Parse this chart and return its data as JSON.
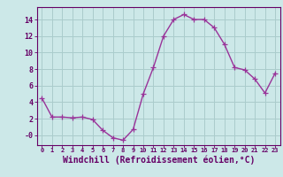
{
  "x": [
    0,
    1,
    2,
    3,
    4,
    5,
    6,
    7,
    8,
    9,
    10,
    11,
    12,
    13,
    14,
    15,
    16,
    17,
    18,
    19,
    20,
    21,
    22,
    23
  ],
  "y": [
    4.5,
    2.2,
    2.2,
    2.1,
    2.2,
    1.9,
    0.6,
    -0.3,
    -0.6,
    0.7,
    5.0,
    8.2,
    12.0,
    14.0,
    14.6,
    14.0,
    14.0,
    13.0,
    11.0,
    8.2,
    7.9,
    6.8,
    5.1,
    7.5
  ],
  "line_color": "#993399",
  "marker": "+",
  "marker_size": 4,
  "linewidth": 1.0,
  "xlabel": "Windchill (Refroidissement éolien,°C)",
  "xlabel_fontsize": 7,
  "ytick_values": [
    0,
    2,
    4,
    6,
    8,
    10,
    12,
    14
  ],
  "ytick_labels": [
    "-0",
    "2",
    "4",
    "6",
    "8",
    "10",
    "12",
    "14"
  ],
  "xtick_labels": [
    "0",
    "1",
    "2",
    "3",
    "4",
    "5",
    "6",
    "7",
    "8",
    "9",
    "10",
    "11",
    "12",
    "13",
    "14",
    "15",
    "16",
    "17",
    "18",
    "19",
    "20",
    "21",
    "22",
    "23"
  ],
  "ylim": [
    -1.2,
    15.5
  ],
  "xlim": [
    -0.5,
    23.5
  ],
  "bg_color": "#cce8e8",
  "grid_color": "#aacccc",
  "line_color_spine": "#660066",
  "tick_color": "#660066",
  "label_color": "#660066"
}
